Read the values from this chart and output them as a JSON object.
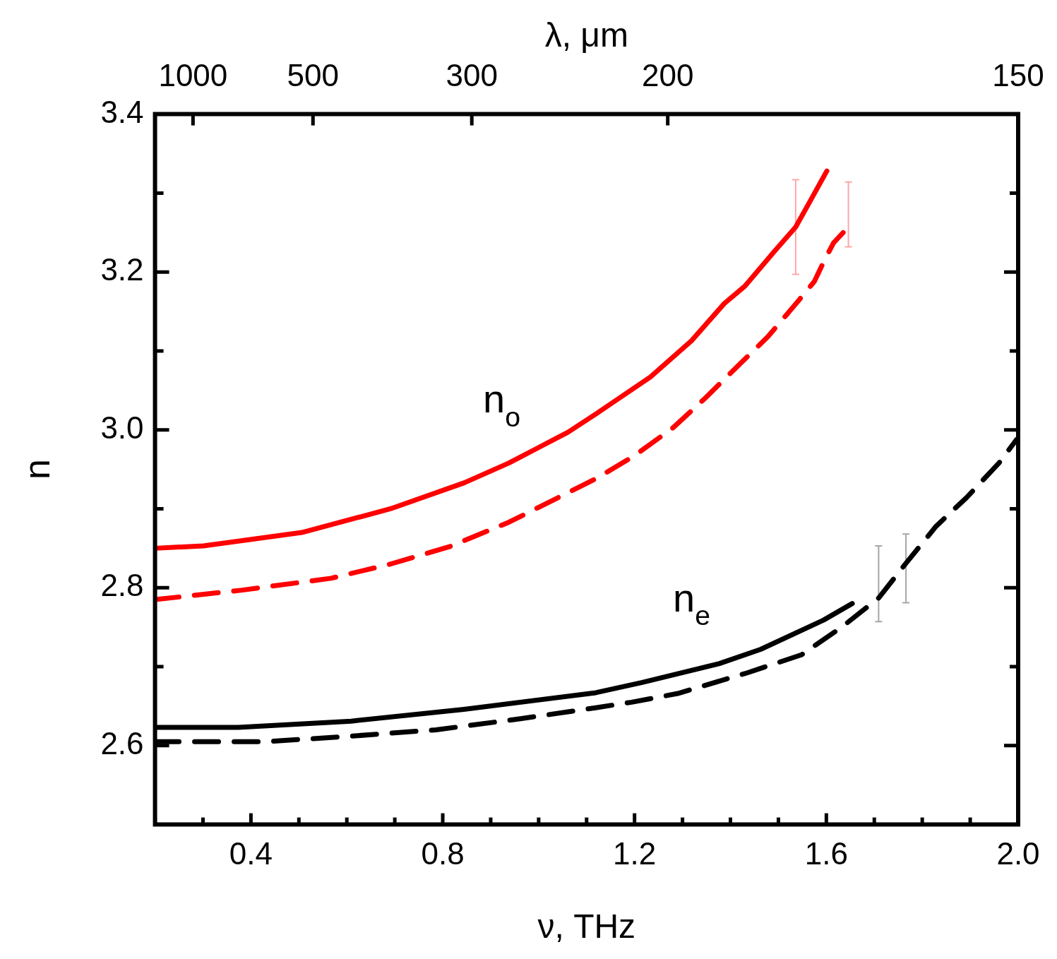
{
  "chart_data": {
    "type": "line",
    "xlabel": "ν, THz",
    "ylabel": "n",
    "x2label": "λ, μm",
    "xlim": [
      0.2,
      2.0
    ],
    "xticks": [
      {
        "value": 0.2,
        "label": null
      },
      {
        "value": 0.3,
        "label": null
      },
      {
        "value": 0.4,
        "label": "0.4"
      },
      {
        "value": 0.5,
        "label": null
      },
      {
        "value": 0.6,
        "label": null
      },
      {
        "value": 0.7,
        "label": null
      },
      {
        "value": 0.8,
        "label": "0.8"
      },
      {
        "value": 0.9,
        "label": null
      },
      {
        "value": 1.0,
        "label": null
      },
      {
        "value": 1.1,
        "label": null
      },
      {
        "value": 1.2,
        "label": "1.2"
      },
      {
        "value": 1.3,
        "label": null
      },
      {
        "value": 1.4,
        "label": null
      },
      {
        "value": 1.5,
        "label": null
      },
      {
        "value": 1.6,
        "label": "1.6"
      },
      {
        "value": 1.7,
        "label": null
      },
      {
        "value": 1.8,
        "label": null
      },
      {
        "value": 1.9,
        "label": null
      },
      {
        "value": 2.0,
        "label": "2.0"
      }
    ],
    "ylim": [
      2.5,
      3.4
    ],
    "yticks": [
      {
        "value": 2.5,
        "label": null
      },
      {
        "value": 2.6,
        "label": "2.6"
      },
      {
        "value": 2.7,
        "label": null
      },
      {
        "value": 2.8,
        "label": "2.8"
      },
      {
        "value": 2.9,
        "label": null
      },
      {
        "value": 3.0,
        "label": "3.0"
      },
      {
        "value": 3.1,
        "label": null
      },
      {
        "value": 3.2,
        "label": "3.2"
      },
      {
        "value": 3.3,
        "label": null
      },
      {
        "value": 3.4,
        "label": "3.4"
      }
    ],
    "grid": false,
    "legend": false,
    "annotations": [
      "1000",
      "500",
      "300",
      "200",
      "150",
      "n$_{o}$",
      "n$_{e}$"
    ],
    "series": [
      {
        "color": "#ff0000",
        "line_style": "solid",
        "x": [
          0.2,
          0.301,
          0.506,
          0.691,
          0.845,
          0.938,
          1.061,
          1.119,
          1.233,
          1.319,
          1.387,
          1.43,
          1.49,
          1.536,
          1.57,
          1.601
        ],
        "values": [
          2.85,
          2.853,
          2.87,
          2.9,
          2.933,
          2.958,
          2.997,
          3.02,
          3.067,
          3.113,
          3.16,
          3.182,
          3.225,
          3.257,
          3.294,
          3.328
        ],
        "errors": [
          null,
          null,
          null,
          null,
          null,
          null,
          null,
          null,
          null,
          null,
          null,
          null,
          null,
          0.06,
          null,
          null
        ]
      },
      {
        "color": "#ff0000",
        "line_style": "dashed",
        "x": [
          0.2,
          0.382,
          0.567,
          0.691,
          0.814,
          0.938,
          1.119,
          1.199,
          1.279,
          1.347,
          1.412,
          1.478,
          1.541,
          1.575,
          1.593,
          1.615,
          1.646
        ],
        "values": [
          2.785,
          2.797,
          2.812,
          2.83,
          2.852,
          2.883,
          2.938,
          2.967,
          3.002,
          3.04,
          3.079,
          3.118,
          3.163,
          3.188,
          3.211,
          3.237,
          3.257
        ],
        "errors": [
          null,
          null,
          null,
          null,
          null,
          null,
          null,
          null,
          null,
          null,
          null,
          null,
          null,
          null,
          null,
          null,
          [
            3.232,
            3.314
          ]
        ]
      },
      {
        "color": "#000000",
        "line_style": "solid",
        "x": [
          0.2,
          0.374,
          0.609,
          0.844,
          1.119,
          1.216,
          1.377,
          1.463,
          1.594,
          1.654
        ],
        "values": [
          2.623,
          2.623,
          2.631,
          2.646,
          2.667,
          2.68,
          2.704,
          2.722,
          2.759,
          2.78
        ]
      },
      {
        "color": "#000000",
        "line_style": "dashed",
        "x": [
          0.2,
          0.432,
          0.609,
          0.786,
          0.962,
          1.119,
          1.194,
          1.29,
          1.434,
          1.548,
          1.634,
          1.709,
          1.766,
          1.829,
          1.892,
          1.96,
          1.997
        ],
        "values": [
          2.605,
          2.605,
          2.612,
          2.62,
          2.634,
          2.648,
          2.655,
          2.666,
          2.692,
          2.715,
          2.751,
          2.787,
          2.831,
          2.878,
          2.914,
          2.958,
          2.988
        ],
        "errors": [
          null,
          null,
          null,
          null,
          null,
          null,
          null,
          null,
          null,
          null,
          null,
          [
            2.757,
            2.853
          ],
          [
            2.781,
            2.868
          ],
          null,
          null,
          null,
          null
        ]
      }
    ]
  }
}
